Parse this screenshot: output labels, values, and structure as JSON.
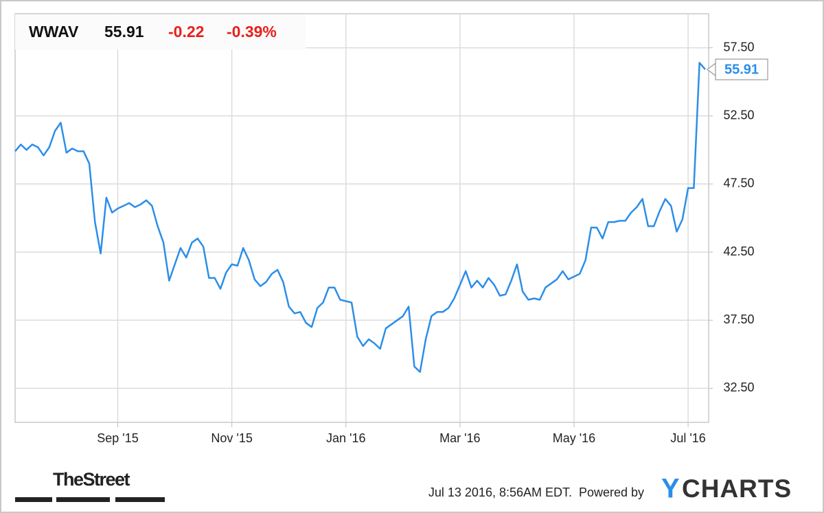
{
  "chart_data": {
    "type": "line",
    "header": {
      "ticker": "WWAV",
      "price": "55.91",
      "change": "-0.22",
      "change_percent": "-0.39%"
    },
    "categories": [
      null,
      null,
      null,
      null,
      null,
      null,
      null,
      null,
      null,
      null,
      null,
      null,
      null,
      null,
      null,
      null,
      null,
      null,
      "Sep '15",
      null,
      null,
      null,
      null,
      null,
      null,
      null,
      null,
      null,
      null,
      null,
      null,
      null,
      null,
      null,
      null,
      null,
      null,
      null,
      "Nov '15",
      null,
      null,
      null,
      null,
      null,
      null,
      null,
      null,
      null,
      null,
      null,
      null,
      null,
      null,
      null,
      null,
      null,
      null,
      null,
      "Jan '16",
      null,
      null,
      null,
      null,
      null,
      null,
      null,
      null,
      null,
      null,
      null,
      null,
      null,
      null,
      null,
      null,
      null,
      null,
      null,
      "Mar '16",
      null,
      null,
      null,
      null,
      null,
      null,
      null,
      null,
      null,
      null,
      null,
      null,
      null,
      null,
      null,
      null,
      null,
      null,
      null,
      "May '16",
      null,
      null,
      null,
      null,
      null,
      null,
      null,
      null,
      null,
      null,
      null,
      null,
      null,
      null,
      null,
      null,
      null,
      null,
      null,
      "Jul '16",
      null,
      null,
      null
    ],
    "values": [
      49.9,
      50.4,
      50.0,
      50.4,
      50.2,
      49.6,
      50.2,
      51.4,
      52.0,
      49.8,
      50.1,
      49.9,
      49.9,
      49.0,
      44.7,
      42.4,
      46.5,
      45.4,
      45.7,
      45.9,
      46.1,
      45.8,
      46.0,
      46.3,
      45.9,
      44.4,
      43.2,
      40.4,
      41.6,
      42.8,
      42.1,
      43.2,
      43.5,
      42.9,
      40.6,
      40.6,
      39.8,
      41.0,
      41.6,
      41.5,
      42.8,
      41.9,
      40.5,
      40.0,
      40.3,
      40.9,
      41.2,
      40.3,
      38.5,
      38.0,
      38.1,
      37.3,
      37.0,
      38.4,
      38.8,
      39.9,
      39.9,
      39.0,
      38.9,
      38.8,
      36.3,
      35.6,
      36.1,
      35.8,
      35.4,
      36.9,
      37.2,
      37.5,
      37.8,
      38.5,
      34.1,
      33.7,
      36.1,
      37.8,
      38.1,
      38.1,
      38.4,
      39.1,
      40.1,
      41.1,
      39.9,
      40.4,
      39.9,
      40.6,
      40.1,
      39.3,
      39.4,
      40.4,
      41.6,
      39.6,
      39.0,
      39.1,
      39.0,
      39.9,
      40.2,
      40.5,
      41.1,
      40.5,
      40.7,
      40.9,
      41.9,
      44.3,
      44.3,
      43.5,
      44.7,
      44.7,
      44.8,
      44.8,
      45.4,
      45.8,
      46.4,
      44.4,
      44.4,
      45.5,
      46.4,
      45.9,
      44.0,
      44.9,
      47.2,
      47.2,
      56.4,
      55.91
    ],
    "color": "#2b8ee8",
    "ylim": [
      30,
      60
    ],
    "yticks": [
      {
        "value": 32.5,
        "label": "32.50"
      },
      {
        "value": 37.5,
        "label": "37.50"
      },
      {
        "value": 42.5,
        "label": "42.50"
      },
      {
        "value": 47.5,
        "label": "47.50"
      },
      {
        "value": 52.5,
        "label": "52.50"
      },
      {
        "value": 57.5,
        "label": "57.50"
      }
    ],
    "grid": true,
    "footer": {
      "source": "TheStreet",
      "timestamp": "Jul 13 2016, 8:56AM EDT.",
      "powered_by": "Powered by",
      "brand_initial": "Y",
      "brand_rest": "CHARTS"
    }
  }
}
